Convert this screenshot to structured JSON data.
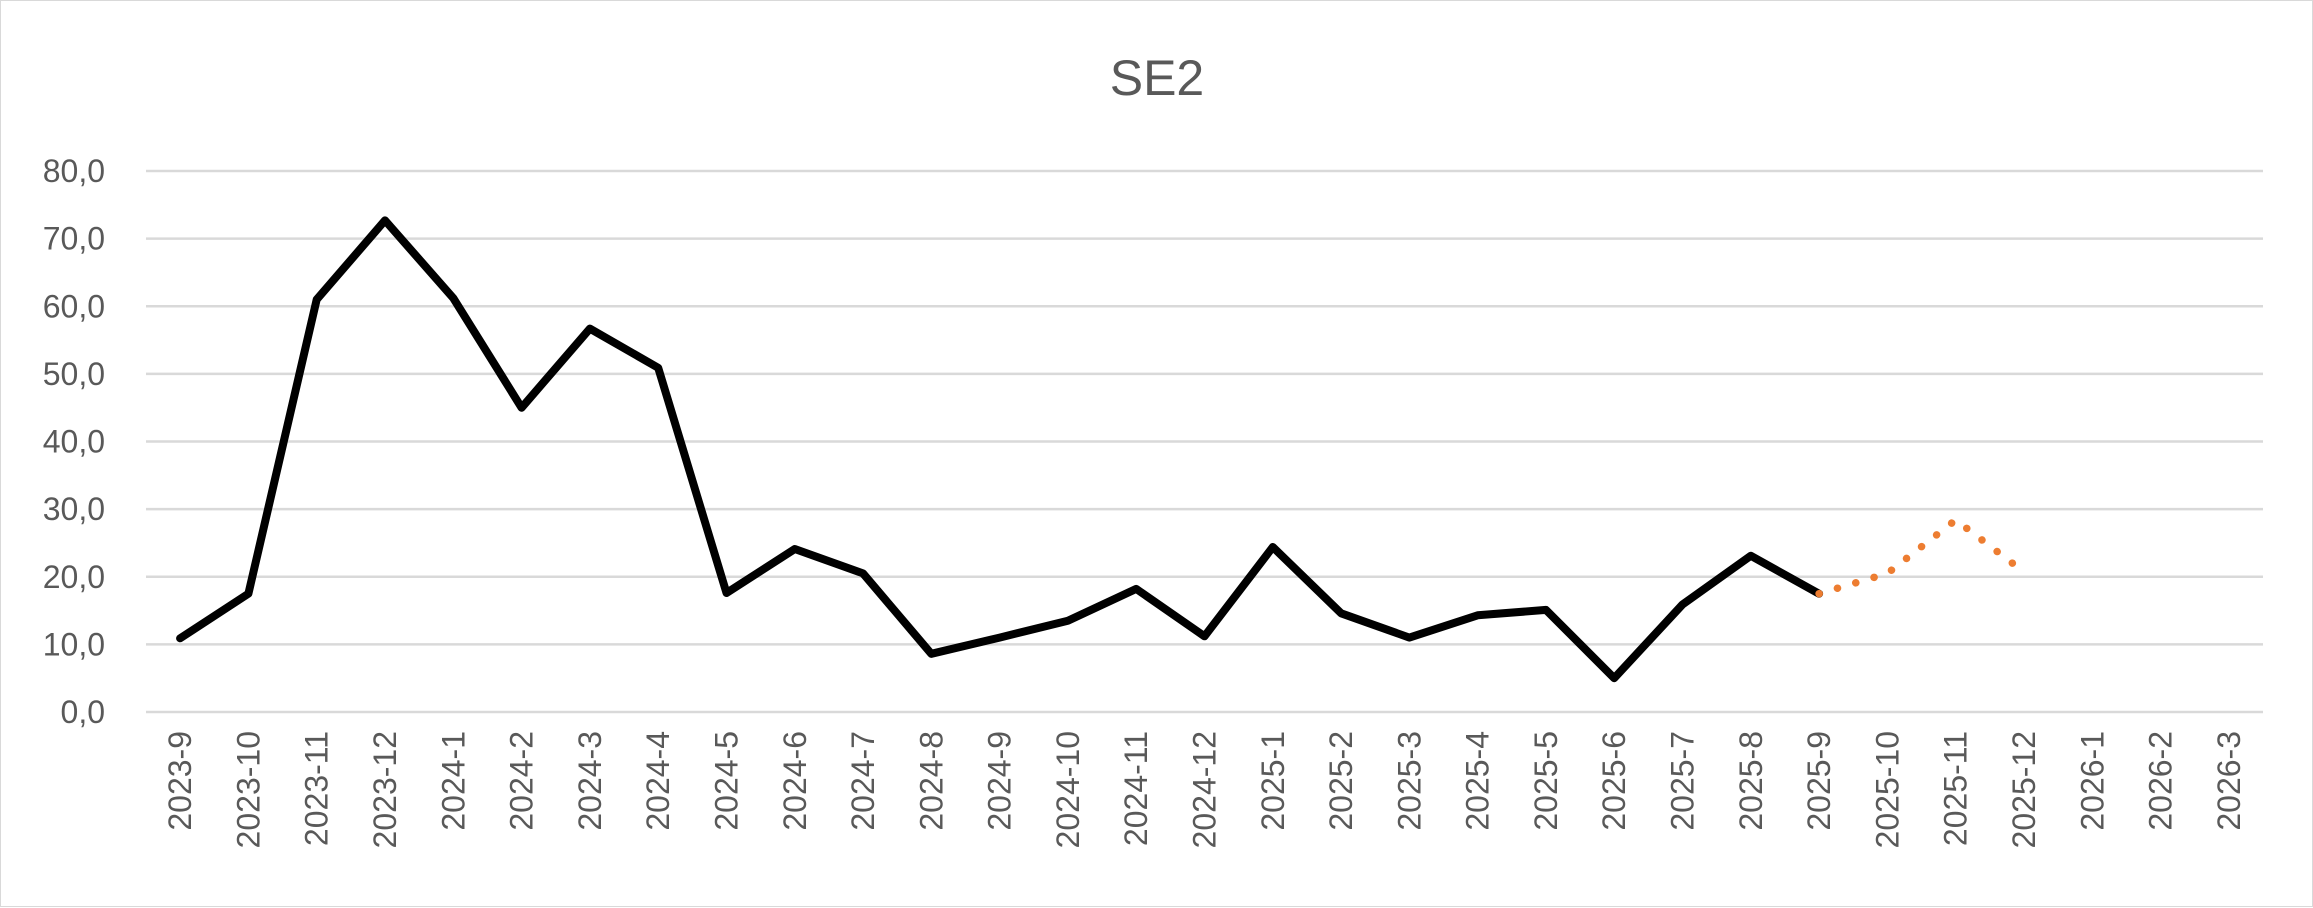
{
  "chart_data": {
    "type": "line",
    "title": "SE2",
    "xlabel": "",
    "ylabel": "",
    "ylim": [
      0,
      80
    ],
    "y_ticks": [
      "0,0",
      "10,0",
      "20,0",
      "30,0",
      "40,0",
      "50,0",
      "60,0",
      "70,0",
      "80,0"
    ],
    "grid": true,
    "legend": "none",
    "categories": [
      "2023-9",
      "2023-10",
      "2023-11",
      "2023-12",
      "2024-1",
      "2024-2",
      "2024-3",
      "2024-4",
      "2024-5",
      "2024-6",
      "2024-7",
      "2024-8",
      "2024-9",
      "2024-10",
      "2024-11",
      "2024-12",
      "2025-1",
      "2025-2",
      "2025-3",
      "2025-4",
      "2025-5",
      "2025-6",
      "2025-7",
      "2025-8",
      "2025-9",
      "2025-10",
      "2025-11",
      "2025-12",
      "2026-1",
      "2026-2",
      "2026-3"
    ],
    "series": [
      {
        "style": "solid",
        "color": "#000000",
        "values": [
          10.9,
          17.5,
          61.0,
          72.7,
          61.2,
          45.0,
          56.7,
          50.9,
          17.6,
          24.1,
          20.5,
          8.6,
          11.0,
          13.5,
          18.2,
          11.2,
          24.4,
          14.6,
          11.0,
          14.3,
          15.1,
          5.0,
          15.9,
          23.1,
          17.5,
          null,
          null,
          null,
          null,
          null,
          null
        ]
      },
      {
        "style": "dotted",
        "color": "#ED7D31",
        "values": [
          null,
          null,
          null,
          null,
          null,
          null,
          null,
          null,
          null,
          null,
          null,
          null,
          null,
          null,
          null,
          null,
          null,
          null,
          null,
          null,
          null,
          null,
          null,
          null,
          17.5,
          20.5,
          28.4,
          20.7,
          null,
          null,
          null
        ]
      }
    ]
  }
}
